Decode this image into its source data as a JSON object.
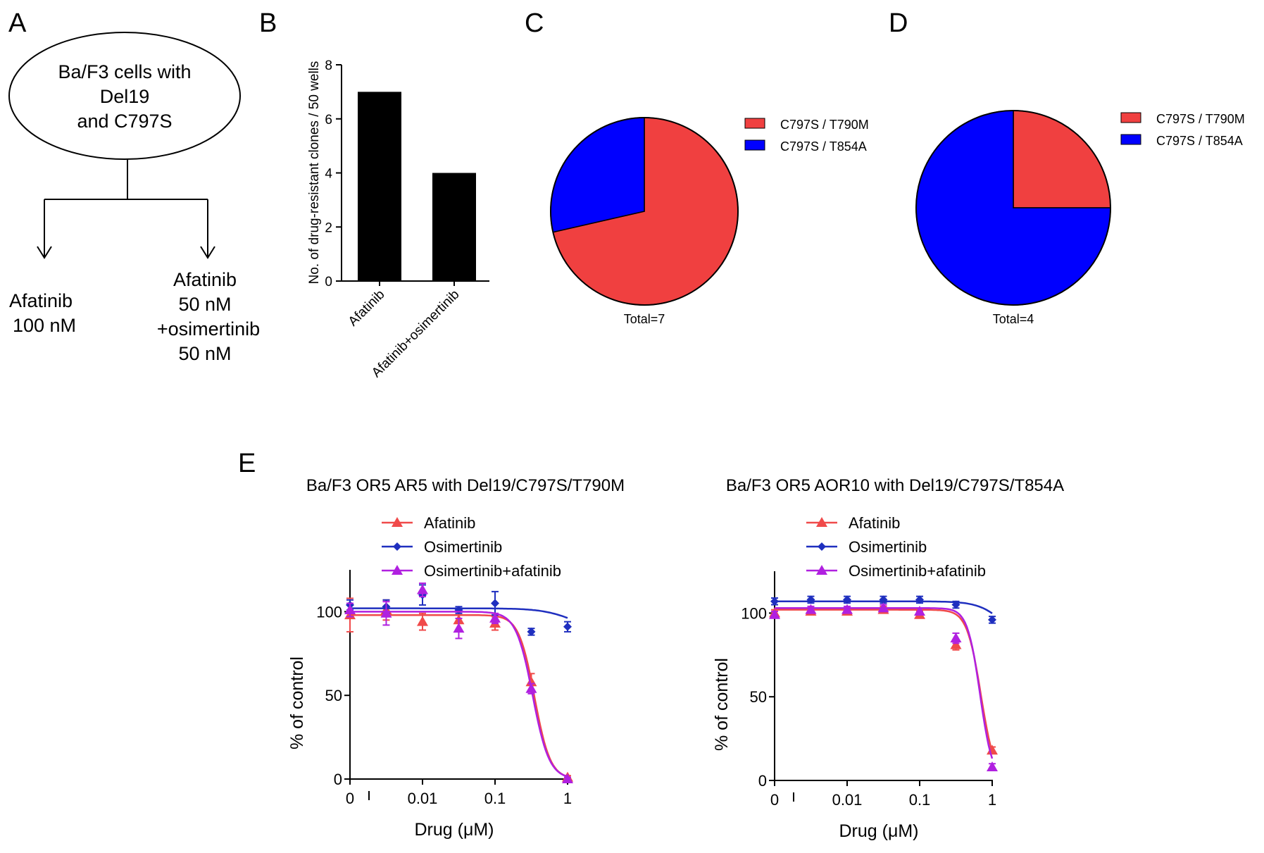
{
  "panel_labels": {
    "a": "A",
    "b": "B",
    "c": "C",
    "d": "D",
    "e": "E"
  },
  "colors": {
    "red": "#f04040",
    "blue": "#0000ff",
    "dark_blue": "#1f2fbf",
    "purple": "#b020e0",
    "pink_red": "#f04a4a"
  },
  "panel_a": {
    "oval_lines": [
      "Ba/F3 cells with",
      "Del19",
      "and C797S"
    ],
    "left_lines": [
      "Afatinib",
      "100 nM"
    ],
    "right_lines": [
      "Afatinib",
      "50 nM",
      "+osimertinib",
      "50 nM"
    ]
  },
  "chart_data": [
    {
      "id": "B",
      "type": "bar",
      "categories": [
        "Afatinib",
        "Afatinib+osimertinib"
      ],
      "values": [
        7,
        4
      ],
      "ylabel": "No. of drug-resistant clones / 50 wells",
      "xlabel": "",
      "ylim": [
        0,
        8
      ],
      "yticks": [
        "0",
        "2",
        "4",
        "6",
        "8"
      ],
      "colors": [
        "#000000"
      ]
    },
    {
      "id": "C",
      "type": "pie",
      "labels": [
        "C797S / T790M",
        "C797S / T854A"
      ],
      "values": [
        5,
        2
      ],
      "colors": [
        "#f04040",
        "#0000ff"
      ],
      "caption": "Total=7",
      "legend": "top-right"
    },
    {
      "id": "D",
      "type": "pie",
      "labels": [
        "C797S / T790M",
        "C797S / T854A"
      ],
      "values": [
        1,
        3
      ],
      "colors": [
        "#f04040",
        "#0000ff"
      ],
      "caption": "Total=4",
      "legend": "top-right"
    },
    {
      "id": "E1",
      "type": "line",
      "title": "Ba/F3 OR5 AR5 with Del19/C797S/T790M",
      "xlabel": "Drug (μM)",
      "ylabel": "% of control",
      "xscale": "log",
      "xticks": [
        "0",
        "0.01",
        "0.1",
        "1"
      ],
      "yticks": [
        "0",
        "50",
        "100"
      ],
      "ylim": [
        0,
        125
      ],
      "legend": "top-left",
      "series": [
        {
          "name": "Afatinib",
          "color": "#f04a4a",
          "marker": "triangle",
          "x": [
            0.001,
            0.00316,
            0.01,
            0.0316,
            0.1,
            0.316,
            1
          ],
          "y": [
            98,
            101,
            94,
            95,
            93,
            58,
            1
          ],
          "err": [
            10,
            6,
            5,
            7,
            4,
            5,
            1
          ],
          "fit": {
            "top": 98,
            "bottom": 0,
            "ic50": 0.35,
            "hill": 4
          }
        },
        {
          "name": "Osimertinib",
          "color": "#1f2fbf",
          "marker": "diamond",
          "x": [
            0.001,
            0.00316,
            0.01,
            0.0316,
            0.1,
            0.316,
            1
          ],
          "y": [
            104,
            103,
            110,
            101,
            105,
            88,
            91
          ],
          "err": [
            3,
            4,
            6,
            2,
            7,
            2,
            3
          ],
          "fit": {
            "top": 102,
            "bottom": 88,
            "ic50": 1.2,
            "hill": 2
          }
        },
        {
          "name": "Osimertinib+afatinib",
          "color": "#b020e0",
          "marker": "triangle",
          "x": [
            0.001,
            0.00316,
            0.01,
            0.0316,
            0.1,
            0.316,
            1
          ],
          "y": [
            101,
            99,
            113,
            90,
            96,
            54,
            0
          ],
          "err": [
            4,
            7,
            4,
            6,
            3,
            3,
            1
          ],
          "fit": {
            "top": 100,
            "bottom": 0,
            "ic50": 0.33,
            "hill": 3.8
          }
        }
      ]
    },
    {
      "id": "E2",
      "type": "line",
      "title": "Ba/F3 OR5 AOR10 with Del19/C797S/T854A",
      "xlabel": "Drug (μM)",
      "ylabel": "% of control",
      "xscale": "log",
      "xticks": [
        "0",
        "0.01",
        "0.1",
        "1"
      ],
      "yticks": [
        "0",
        "50",
        "100"
      ],
      "ylim": [
        0,
        125
      ],
      "legend": "top-left",
      "series": [
        {
          "name": "Afatinib",
          "color": "#f04a4a",
          "marker": "triangle",
          "x": [
            0.001,
            0.00316,
            0.01,
            0.0316,
            0.1,
            0.316,
            1
          ],
          "y": [
            100,
            101,
            101,
            102,
            99,
            81,
            18
          ],
          "err": [
            2,
            2,
            2,
            2,
            2,
            3,
            2
          ],
          "fit": {
            "top": 102,
            "bottom": 0,
            "ic50": 0.7,
            "hill": 4.5
          }
        },
        {
          "name": "Osimertinib",
          "color": "#1f2fbf",
          "marker": "diamond",
          "x": [
            0.001,
            0.00316,
            0.01,
            0.0316,
            0.1,
            0.316,
            1
          ],
          "y": [
            107,
            108,
            108,
            108,
            108,
            105,
            96
          ],
          "err": [
            2,
            2,
            2,
            2,
            2,
            2,
            2
          ],
          "fit": {
            "top": 107,
            "bottom": 80,
            "ic50": 1.5,
            "hill": 2.5
          }
        },
        {
          "name": "Osimertinib+afatinib",
          "color": "#b020e0",
          "marker": "triangle",
          "x": [
            0.001,
            0.00316,
            0.01,
            0.0316,
            0.1,
            0.316,
            1
          ],
          "y": [
            99,
            102,
            102,
            103,
            101,
            85,
            8
          ],
          "err": [
            2,
            2,
            2,
            2,
            2,
            3,
            2
          ],
          "fit": {
            "top": 103,
            "bottom": 0,
            "ic50": 0.68,
            "hill": 5
          }
        }
      ]
    }
  ]
}
